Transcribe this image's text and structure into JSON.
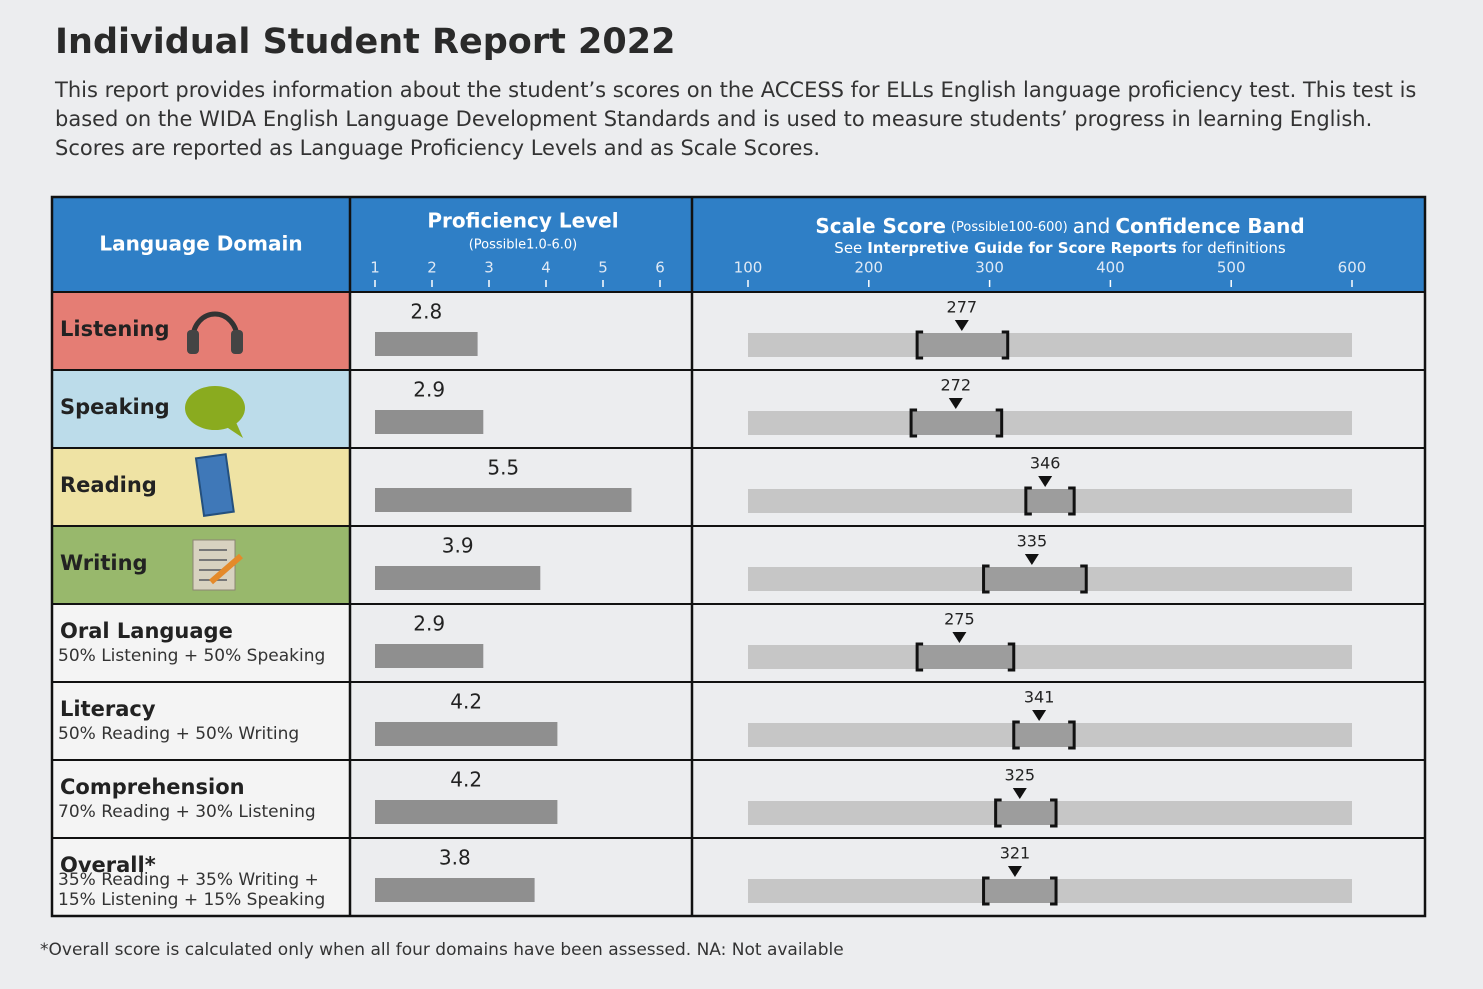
{
  "header": {
    "title": "Individual Student Report 2022",
    "description": "This report provides information about the student’s scores on the ACCESS for ELLs English language proficiency test. This test is based on the WIDA English Language Development Standards and is used to measure students’ progress in learning English. Scores are reported as Language Proficiency Levels and as Scale Scores."
  },
  "table": {
    "headers": {
      "domain": "Language Domain",
      "proficiency": "Proficiency Level",
      "proficiency_note": "(Possible1.0-6.0)",
      "scale": "Scale Score",
      "scale_note": "(Possible100-600)",
      "scale_and": "and",
      "band": "Confidence Band",
      "guide_see": "See",
      "guide_link": "Interpretive Guide for Score Reports",
      "guide_rest": "for definitions"
    },
    "proficiency_axis": {
      "lim": [
        1,
        6
      ],
      "ticks": [
        1,
        2,
        3,
        4,
        5,
        6
      ]
    },
    "scale_axis": {
      "lim": [
        100,
        600
      ],
      "ticks": [
        100,
        200,
        300,
        400,
        500,
        600
      ]
    },
    "rows": [
      {
        "domain": "Listening",
        "color": "#e57d74",
        "proficiency": 2.8,
        "scale": 277,
        "band": [
          240,
          315
        ]
      },
      {
        "domain": "Speaking",
        "color": "#bcdcea",
        "proficiency": 2.9,
        "scale": 272,
        "band": [
          235,
          310
        ]
      },
      {
        "domain": "Reading",
        "color": "#efe3a4",
        "proficiency": 5.5,
        "scale": 346,
        "band": [
          330,
          370
        ]
      },
      {
        "domain": "Writing",
        "color": "#98b86c",
        "proficiency": 3.9,
        "scale": 335,
        "band": [
          295,
          380
        ]
      },
      {
        "domain": "Oral Language",
        "weights": [
          "50% Listening + 50% Speaking"
        ],
        "proficiency": 2.9,
        "scale": 275,
        "band": [
          240,
          320
        ]
      },
      {
        "domain": "Literacy",
        "weights": [
          "50% Reading + 50% Writing"
        ],
        "proficiency": 4.2,
        "scale": 341,
        "band": [
          320,
          370
        ]
      },
      {
        "domain": "Comprehension",
        "weights": [
          "70% Reading + 30% Listening"
        ],
        "proficiency": 4.2,
        "scale": 325,
        "band": [
          305,
          355
        ]
      },
      {
        "domain": "Overall*",
        "weights": [
          "35% Reading + 35% Writing +",
          "15% Listening + 15% Speaking"
        ],
        "proficiency": 3.8,
        "scale": 321,
        "band": [
          295,
          355
        ]
      }
    ]
  },
  "footnote": "*Overall score is calculated only when all four domains have been assessed.  NA: Not available"
}
